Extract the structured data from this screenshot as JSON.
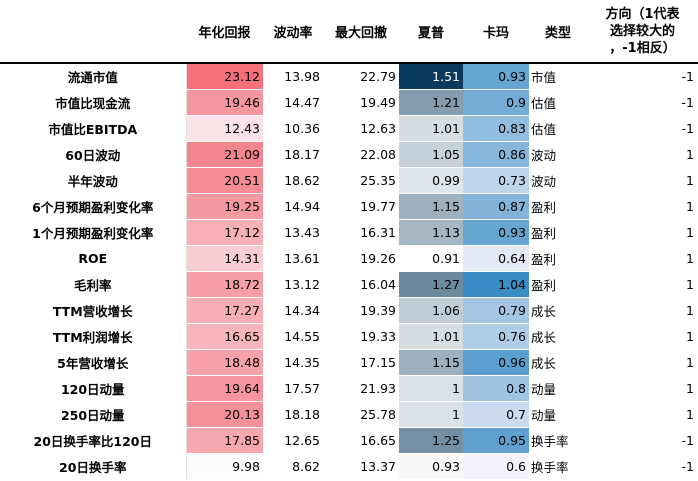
{
  "headers": {
    "name": "",
    "annual_return": "年化回报",
    "volatility": "波动率",
    "max_drawdown": "最大回撤",
    "sharpe": "夏普",
    "calmar": "卡玛",
    "type": "类型",
    "direction_line1": "方向（1代表",
    "direction_line2": "选择较大的",
    "direction_line3": "，-1相反）"
  },
  "heat_colors": {
    "return_high": "#f4707a",
    "return_low": "#fcfcff",
    "sharpe_high": "#0b3a5e",
    "sharpe_low": "#ffffff",
    "calmar_high": "#3a8cc4",
    "calmar_low": "#f4f2fb"
  },
  "rows": [
    {
      "name": "流通市值",
      "annual_return": "23.12",
      "volatility": "13.98",
      "max_drawdown": "22.79",
      "sharpe": "1.51",
      "calmar": "0.93",
      "type": "市值",
      "direction": "-1"
    },
    {
      "name": "市值比现金流",
      "annual_return": "19.46",
      "volatility": "14.47",
      "max_drawdown": "19.49",
      "sharpe": "1.21",
      "calmar": "0.9",
      "type": "估值",
      "direction": "-1"
    },
    {
      "name": "市值比EBITDA",
      "annual_return": "12.43",
      "volatility": "10.36",
      "max_drawdown": "12.63",
      "sharpe": "1.01",
      "calmar": "0.83",
      "type": "估值",
      "direction": "-1"
    },
    {
      "name": "60日波动",
      "annual_return": "21.09",
      "volatility": "18.17",
      "max_drawdown": "22.08",
      "sharpe": "1.05",
      "calmar": "0.86",
      "type": "波动",
      "direction": "1"
    },
    {
      "name": "半年波动",
      "annual_return": "20.51",
      "volatility": "18.62",
      "max_drawdown": "25.35",
      "sharpe": "0.99",
      "calmar": "0.73",
      "type": "波动",
      "direction": "1"
    },
    {
      "name": "6个月预期盈利变化率",
      "annual_return": "19.25",
      "volatility": "14.94",
      "max_drawdown": "19.77",
      "sharpe": "1.15",
      "calmar": "0.87",
      "type": "盈利",
      "direction": "1"
    },
    {
      "name": "1个月预期盈利变化率",
      "annual_return": "17.12",
      "volatility": "13.43",
      "max_drawdown": "16.31",
      "sharpe": "1.13",
      "calmar": "0.93",
      "type": "盈利",
      "direction": "1"
    },
    {
      "name": "ROE",
      "annual_return": "14.31",
      "volatility": "13.61",
      "max_drawdown": "19.26",
      "sharpe": "0.91",
      "calmar": "0.64",
      "type": "盈利",
      "direction": "1"
    },
    {
      "name": "毛利率",
      "annual_return": "18.72",
      "volatility": "13.12",
      "max_drawdown": "16.04",
      "sharpe": "1.27",
      "calmar": "1.04",
      "type": "盈利",
      "direction": "1"
    },
    {
      "name": "TTM营收增长",
      "annual_return": "17.27",
      "volatility": "14.34",
      "max_drawdown": "19.39",
      "sharpe": "1.06",
      "calmar": "0.79",
      "type": "成长",
      "direction": "1"
    },
    {
      "name": "TTM利润增长",
      "annual_return": "16.65",
      "volatility": "14.55",
      "max_drawdown": "19.33",
      "sharpe": "1.01",
      "calmar": "0.76",
      "type": "成长",
      "direction": "1"
    },
    {
      "name": "5年营收增长",
      "annual_return": "18.48",
      "volatility": "14.35",
      "max_drawdown": "17.15",
      "sharpe": "1.15",
      "calmar": "0.96",
      "type": "成长",
      "direction": "1"
    },
    {
      "name": "120日动量",
      "annual_return": "19.64",
      "volatility": "17.57",
      "max_drawdown": "21.93",
      "sharpe": "1",
      "calmar": "0.8",
      "type": "动量",
      "direction": "1"
    },
    {
      "name": "250日动量",
      "annual_return": "20.13",
      "volatility": "18.18",
      "max_drawdown": "25.78",
      "sharpe": "1",
      "calmar": "0.7",
      "type": "动量",
      "direction": "1"
    },
    {
      "name": "20日换手率比120日",
      "annual_return": "17.85",
      "volatility": "12.65",
      "max_drawdown": "16.65",
      "sharpe": "1.25",
      "calmar": "0.95",
      "type": "换手率",
      "direction": "-1"
    },
    {
      "name": "20日换手率",
      "annual_return": "9.98",
      "volatility": "8.62",
      "max_drawdown": "13.37",
      "sharpe": "0.93",
      "calmar": "0.6",
      "type": "换手率",
      "direction": "-1"
    }
  ]
}
